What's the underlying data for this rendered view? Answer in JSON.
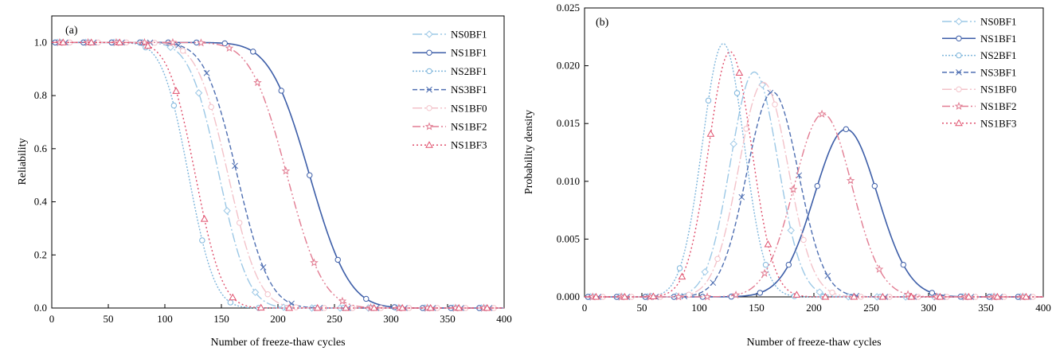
{
  "chart_data": [
    {
      "type": "line",
      "panel_label": "(a)",
      "xlabel": "Number of freeze-thaw cycles",
      "ylabel": "Reliability",
      "xlim": [
        0,
        400
      ],
      "ylim": [
        0,
        1.1
      ],
      "xticks": [
        "0",
        "50",
        "100",
        "150",
        "200",
        "250",
        "300",
        "350",
        "400"
      ],
      "yticks": [
        "0.0",
        "0.2",
        "0.4",
        "0.6",
        "0.8",
        "1.0"
      ],
      "legend_position": "top-right",
      "series": [
        {
          "name": "NS0BF1",
          "color": "#9cc8e6",
          "dash": "12 3 2 3",
          "marker": "diamond",
          "mu": 148,
          "sigma": 20.5
        },
        {
          "name": "NS1BF1",
          "color": "#3d5ea8",
          "dash": "",
          "marker": "circle",
          "mu": 228,
          "sigma": 27.5
        },
        {
          "name": "NS2BF1",
          "color": "#7fb6dc",
          "dash": "2 2",
          "marker": "circle",
          "mu": 121,
          "sigma": 18.2
        },
        {
          "name": "NS3BF1",
          "color": "#4f6fb2",
          "dash": "6 3",
          "marker": "x",
          "mu": 164,
          "sigma": 22.5
        },
        {
          "name": "NS1BF0",
          "color": "#f3c2c9",
          "dash": "12 3 2 3",
          "marker": "circle",
          "mu": 156,
          "sigma": 21.5
        },
        {
          "name": "NS1BF2",
          "color": "#e27d93",
          "dash": "10 3 2 3 2 3",
          "marker": "star",
          "mu": 208,
          "sigma": 25.2
        },
        {
          "name": "NS1BF3",
          "color": "#e0506d",
          "dash": "2 3",
          "marker": "triangle",
          "mu": 127,
          "sigma": 18.8
        }
      ]
    },
    {
      "type": "line",
      "panel_label": "(b)",
      "xlabel": "Number of freeze-thaw cycles",
      "ylabel": "Probability density",
      "xlim": [
        0,
        400
      ],
      "ylim": [
        0,
        0.025
      ],
      "xticks": [
        "0",
        "50",
        "100",
        "150",
        "200",
        "250",
        "300",
        "350",
        "400"
      ],
      "yticks": [
        "0.000",
        "0.005",
        "0.010",
        "0.015",
        "0.020",
        "0.025"
      ],
      "legend_position": "top-right",
      "series": [
        {
          "name": "NS0BF1",
          "color": "#9cc8e6",
          "dash": "12 3 2 3",
          "marker": "diamond",
          "mu": 148,
          "sigma": 20.5
        },
        {
          "name": "NS1BF1",
          "color": "#3d5ea8",
          "dash": "",
          "marker": "circle",
          "mu": 228,
          "sigma": 27.5
        },
        {
          "name": "NS2BF1",
          "color": "#7fb6dc",
          "dash": "2 2",
          "marker": "circle",
          "mu": 121,
          "sigma": 18.2
        },
        {
          "name": "NS3BF1",
          "color": "#4f6fb2",
          "dash": "6 3",
          "marker": "x",
          "mu": 164,
          "sigma": 22.5
        },
        {
          "name": "NS1BF0",
          "color": "#f3c2c9",
          "dash": "12 3 2 3",
          "marker": "circle",
          "mu": 156,
          "sigma": 21.5
        },
        {
          "name": "NS1BF2",
          "color": "#e27d93",
          "dash": "10 3 2 3 2 3",
          "marker": "star",
          "mu": 208,
          "sigma": 25.2
        },
        {
          "name": "NS1BF3",
          "color": "#e0506d",
          "dash": "2 3",
          "marker": "triangle",
          "mu": 127,
          "sigma": 18.8
        }
      ]
    }
  ]
}
